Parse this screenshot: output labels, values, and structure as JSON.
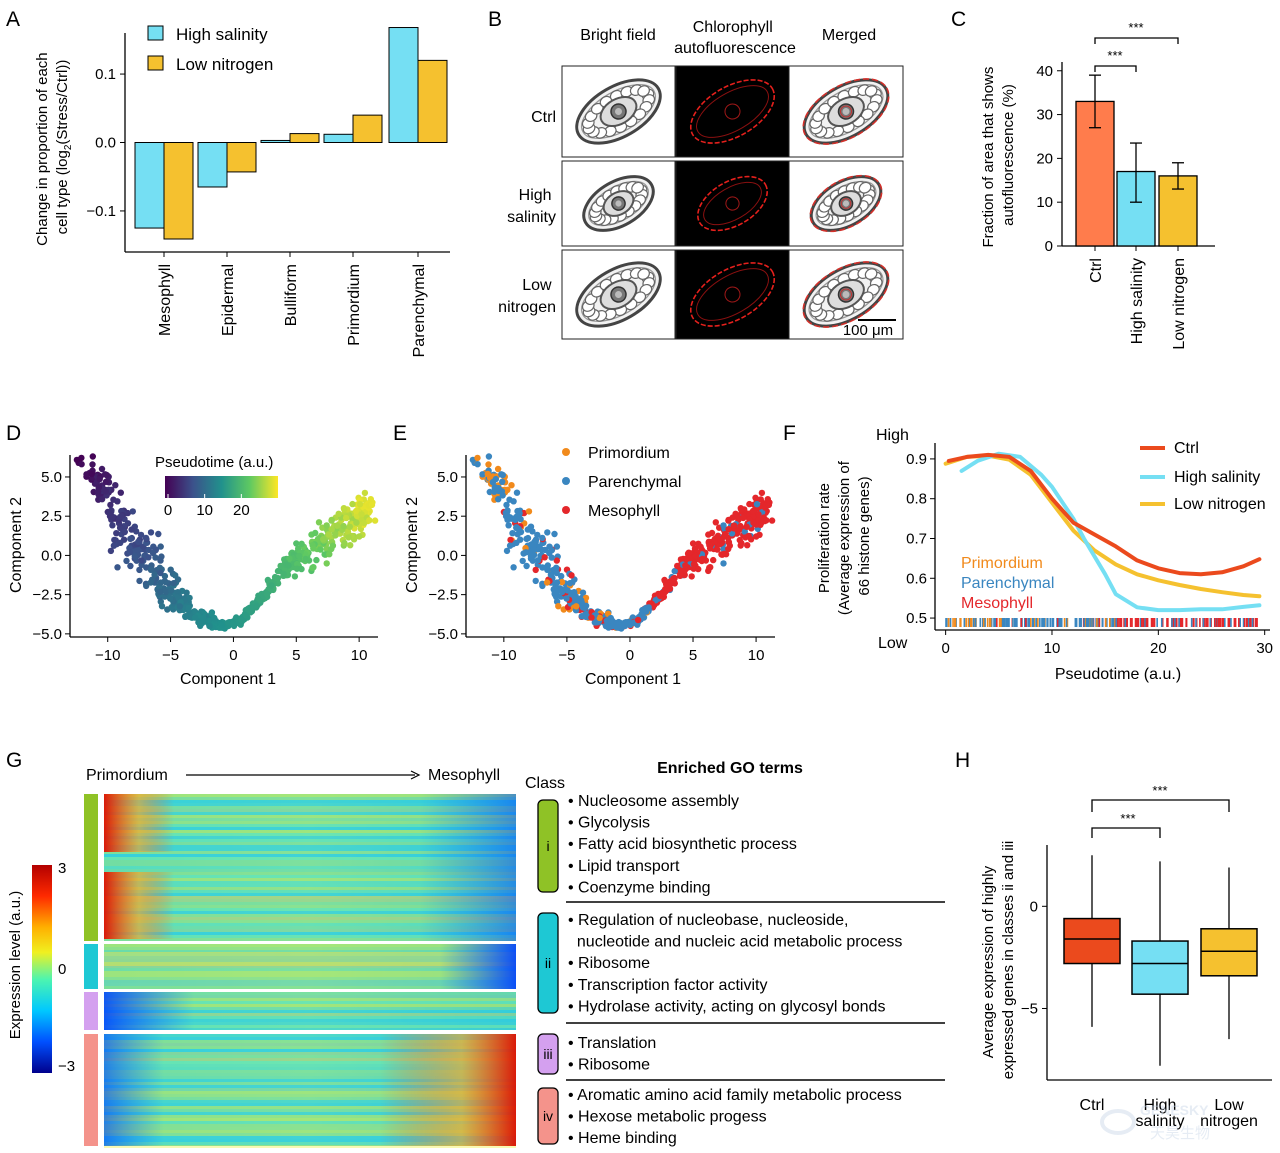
{
  "panel_labels": [
    "A",
    "B",
    "C",
    "D",
    "E",
    "F",
    "G",
    "H"
  ],
  "colors": {
    "high_salinity": "#75dff3",
    "low_nitrogen": "#f5c12f",
    "ctrl_bar": "#ff7c4c",
    "ctrl_line": "#eb4a1d",
    "primordium": "#f18a1c",
    "parenchymal": "#3a86c0",
    "mesophyll": "#e4272b",
    "class_i": "#8fc226",
    "class_ii": "#1ec8d4",
    "class_iii": "#d4a0ef",
    "class_iv": "#f4938b"
  },
  "chart_data": [
    {
      "panel": "A",
      "type": "bar",
      "ylabel": "Change in proportion of each cell type (log2(Stress/Ctrl))",
      "ylabel_lines": [
        "Change in proportion of each",
        "cell type (log",
        "2",
        "(Stress/Ctrl))"
      ],
      "categories": [
        "Mesophyll",
        "Epidermal",
        "Bulliform",
        "Primordium",
        "Parenchymal"
      ],
      "series": [
        {
          "name": "High salinity",
          "values": [
            -0.125,
            -0.065,
            0.003,
            0.012,
            0.168
          ]
        },
        {
          "name": "Low nitrogen",
          "values": [
            -0.141,
            -0.043,
            0.013,
            0.04,
            0.12
          ]
        }
      ],
      "yticks": [
        "0.1",
        "0.0",
        "−0.1"
      ],
      "ytick_values": [
        0.1,
        0.0,
        -0.1
      ],
      "ylim": [
        -0.16,
        0.16
      ]
    },
    {
      "panel": "B",
      "type": "image-grid",
      "column_headers": [
        "Bright field",
        "Chlorophyll autofluorescence",
        "Merged"
      ],
      "header_lines": [
        [
          "Bright field"
        ],
        [
          "Chlorophyll",
          "autofluorescence"
        ],
        [
          "Merged"
        ]
      ],
      "row_labels": [
        [
          "Ctrl"
        ],
        [
          "High",
          "salinity"
        ],
        [
          "Low",
          "nitrogen"
        ]
      ],
      "scale_bar": "100 μm"
    },
    {
      "panel": "C",
      "type": "bar",
      "ylabel": "Fraction of area that shows autofluorescence (%)",
      "ylabel_lines": [
        "Fraction of  area that shows",
        "autofluorescence (%)"
      ],
      "categories": [
        "Ctrl",
        "High salinity",
        "Low nitrogen"
      ],
      "values": [
        33,
        17,
        16
      ],
      "errors": [
        [
          27,
          39
        ],
        [
          10,
          23.5
        ],
        [
          13,
          19
        ]
      ],
      "yticks": [
        "40",
        "30",
        "20",
        "10",
        "0"
      ],
      "ytick_values": [
        40,
        30,
        20,
        10,
        0
      ],
      "ylim": [
        0,
        42
      ],
      "significance": [
        "***",
        "***"
      ]
    },
    {
      "panel": "D",
      "type": "scatter",
      "xlabel": "Component 1",
      "ylabel": "Component 2",
      "xticks": [
        "−10",
        "−5",
        "0",
        "5",
        "10"
      ],
      "xtick_values": [
        -10,
        -5,
        0,
        5,
        10
      ],
      "yticks": [
        "5.0",
        "2.5",
        "0.0",
        "−2.5",
        "−5.0"
      ],
      "ytick_values": [
        5,
        2.5,
        0,
        -2.5,
        -5
      ],
      "xlim": [
        -13,
        11.5
      ],
      "ylim": [
        -5.2,
        6.4
      ],
      "colorbar_title": "Pseudotime (a.u.)",
      "colorbar_ticks": [
        "0",
        "10",
        "20"
      ],
      "colorbar_tick_values": [
        0,
        10,
        20
      ],
      "colorbar_range": [
        0,
        30
      ],
      "trajectory": [
        [
          -11.8,
          6.0,
          0
        ],
        [
          -10.5,
          4.2,
          3
        ],
        [
          -8.5,
          1.5,
          6
        ],
        [
          -6.5,
          -1.0,
          9
        ],
        [
          -4.5,
          -3.0,
          12
        ],
        [
          -2.5,
          -4.0,
          14
        ],
        [
          -1.0,
          -4.5,
          15
        ],
        [
          0.5,
          -4.2,
          16
        ],
        [
          2.5,
          -2.5,
          18
        ],
        [
          4.0,
          -1.0,
          20
        ],
        [
          6.0,
          0.2,
          22
        ],
        [
          8.0,
          1.3,
          25
        ],
        [
          9.5,
          2.3,
          27
        ],
        [
          10.6,
          3.0,
          29
        ]
      ]
    },
    {
      "panel": "E",
      "type": "scatter",
      "xlabel": "Component 1",
      "ylabel": "Component 2",
      "xticks": [
        "−10",
        "−5",
        "0",
        "5",
        "10"
      ],
      "xtick_values": [
        -10,
        -5,
        0,
        5,
        10
      ],
      "yticks": [
        "5.0",
        "2.5",
        "0.0",
        "−2.5",
        "−5.0"
      ],
      "ytick_values": [
        5,
        2.5,
        0,
        -2.5,
        -5
      ],
      "xlim": [
        -13,
        11.5
      ],
      "ylim": [
        -5.2,
        6.4
      ],
      "legend": [
        "Primordium",
        "Parenchymal",
        "Mesophyll"
      ]
    },
    {
      "panel": "F",
      "type": "line",
      "xlabel": "Pseudotime (a.u.)",
      "ylabel": "Proliferation rate (Average expression of 66 histone genes)",
      "ylabel_lines": [
        "Proliferation rate",
        "(Average expression of",
        "66 histone genes)"
      ],
      "ytop_label": "High",
      "ybottom_label": "Low",
      "xticks": [
        "0",
        "10",
        "20",
        "30"
      ],
      "xtick_values": [
        0,
        10,
        20,
        30
      ],
      "yticks": [
        "0.9",
        "0.8",
        "0.7",
        "0.6",
        "0.5"
      ],
      "ytick_values": [
        0.9,
        0.8,
        0.7,
        0.6,
        0.5
      ],
      "xlim": [
        -1,
        30.5
      ],
      "ylim": [
        0.47,
        0.94
      ],
      "series": [
        {
          "name": "Ctrl",
          "x": [
            0.3,
            2,
            4,
            6,
            8,
            10,
            12,
            14,
            16,
            18,
            20,
            22,
            24,
            26,
            28,
            29.5
          ],
          "y": [
            0.895,
            0.905,
            0.91,
            0.905,
            0.87,
            0.8,
            0.74,
            0.71,
            0.68,
            0.645,
            0.625,
            0.613,
            0.61,
            0.615,
            0.63,
            0.648
          ]
        },
        {
          "name": "High salinity",
          "x": [
            1.5,
            3,
            5,
            7,
            9,
            10,
            11,
            12,
            13,
            14,
            15,
            16,
            18,
            20,
            22,
            24,
            26,
            28,
            29.5
          ],
          "y": [
            0.87,
            0.895,
            0.913,
            0.905,
            0.86,
            0.83,
            0.79,
            0.75,
            0.7,
            0.655,
            0.61,
            0.56,
            0.527,
            0.52,
            0.52,
            0.522,
            0.522,
            0.528,
            0.532
          ]
        },
        {
          "name": "Low nitrogen",
          "x": [
            0,
            2,
            4,
            6,
            8,
            10,
            12,
            14,
            16,
            18,
            20,
            22,
            24,
            26,
            28,
            29.5
          ],
          "y": [
            0.888,
            0.905,
            0.908,
            0.898,
            0.86,
            0.79,
            0.72,
            0.67,
            0.635,
            0.61,
            0.595,
            0.583,
            0.573,
            0.565,
            0.558,
            0.555
          ]
        }
      ],
      "rug_legend": [
        "Primordium",
        "Parenchymal",
        "Mesophyll"
      ]
    },
    {
      "panel": "G",
      "type": "heatmap",
      "axis_left": "Primordium",
      "axis_right": "Mesophyll",
      "colorbar_title": "Expression level (a.u.)",
      "colorbar_ticks": [
        "3",
        "0",
        "−3"
      ],
      "colorbar_tick_values": [
        3,
        0,
        -3
      ],
      "class_header": "Class",
      "go_header": "Enriched GO terms",
      "classes": [
        {
          "id": "i",
          "terms": [
            "• Nucleosome assembly",
            "• Glycolysis",
            "• Fatty acid biosynthetic process",
            "• Lipid transport",
            "• Coenzyme binding"
          ]
        },
        {
          "id": "ii",
          "terms": [
            "• Regulation of nucleobase, nucleoside,",
            "  nucleotide and nucleic acid metabolic process",
            "• Ribosome",
            "• Transcription factor activity",
            "• Hydrolase activity, acting on glycosyl bonds"
          ]
        },
        {
          "id": "iii",
          "terms": [
            "• Translation",
            "• Ribosome"
          ]
        },
        {
          "id": "iv",
          "terms": [
            "• Aromatic amino acid family metabolic process",
            "• Hexose metabolic progess",
            "• Heme binding"
          ]
        }
      ]
    },
    {
      "panel": "H",
      "type": "box",
      "ylabel": "Average expression of highly expressed genes in classes ii and iii",
      "ylabel_lines": [
        "Average expression of  highly",
        "expressed genes in classes ii and iii"
      ],
      "categories": [
        "Ctrl",
        "High salinity",
        "Low nitrogen"
      ],
      "category_lines": [
        [
          "Ctrl"
        ],
        [
          "High",
          "salinity"
        ],
        [
          "Low",
          "nitrogen"
        ]
      ],
      "boxes": [
        {
          "whisker_low": -5.9,
          "q1": -2.8,
          "median": -1.6,
          "q3": -0.6,
          "whisker_high": 2.5
        },
        {
          "whisker_low": -7.8,
          "q1": -4.3,
          "median": -2.8,
          "q3": -1.7,
          "whisker_high": 2.2
        },
        {
          "whisker_low": -6.5,
          "q1": -3.4,
          "median": -2.2,
          "q3": -1.1,
          "whisker_high": 1.9
        }
      ],
      "yticks": [
        "0",
        "−5"
      ],
      "ytick_values": [
        0,
        -5
      ],
      "ylim": [
        -8.5,
        3.0
      ],
      "significance": [
        "***",
        "***"
      ]
    }
  ],
  "watermark": [
    "GENESKY",
    "天昊生物"
  ]
}
